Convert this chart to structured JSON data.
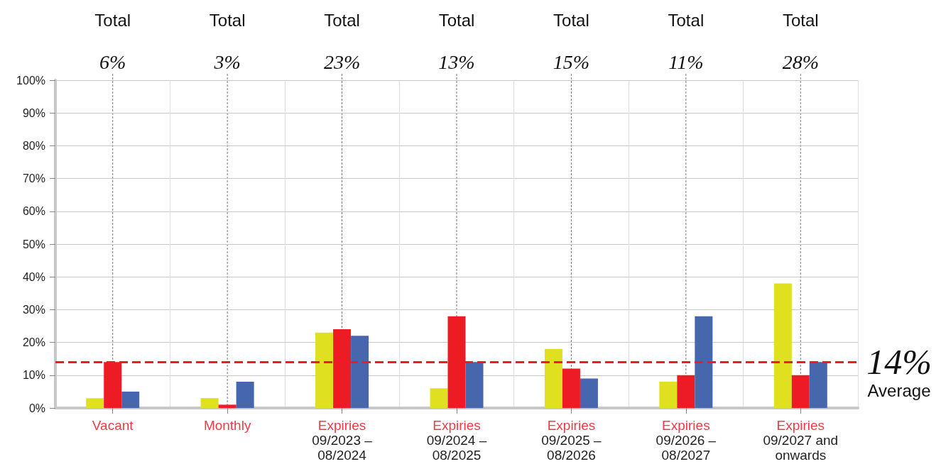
{
  "chart_data": {
    "type": "bar",
    "categories": [
      "Vacant",
      "Monthly",
      "Expiries\n09/2023 –\n08/2024",
      "Expiries\n09/2024 –\n08/2025",
      "Expiries\n09/2025 –\n08/2026",
      "Expiries\n09/2026 –\n08/2027",
      "Expiries\n09/2027 and\nonwards"
    ],
    "series": [
      {
        "color": "#dfe020",
        "values": [
          3,
          3,
          23,
          6,
          18,
          8,
          38
        ]
      },
      {
        "color": "#ed1c24",
        "values": [
          14,
          1,
          24,
          28,
          12,
          10,
          10
        ]
      },
      {
        "color": "#4667ae",
        "values": [
          5,
          8,
          22,
          14,
          9,
          28,
          14
        ]
      }
    ],
    "ylim": [
      0,
      100
    ],
    "yticks": [
      {
        "value": 0,
        "label": "0%"
      },
      {
        "value": 10,
        "label": "10%"
      },
      {
        "value": 20,
        "label": "20%"
      },
      {
        "value": 30,
        "label": "30%"
      },
      {
        "value": 40,
        "label": "40%"
      },
      {
        "value": 50,
        "label": "50%"
      },
      {
        "value": 60,
        "label": "60%"
      },
      {
        "value": 70,
        "label": "70%"
      },
      {
        "value": 80,
        "label": "80%"
      },
      {
        "value": 90,
        "label": "90%"
      },
      {
        "value": 100,
        "label": "100%"
      }
    ],
    "grid": true,
    "ref_lines": [
      {
        "axis": "y",
        "value": 14,
        "label": "14%\nAverage",
        "color": "#ed1c24",
        "line_style": "dashed"
      }
    ],
    "annotations": [
      "Total",
      "6%",
      "Total",
      "3%",
      "Total",
      "23%",
      "Total",
      "13%",
      "Total",
      "15%",
      "Total",
      "11%",
      "Total",
      "28%"
    ]
  }
}
